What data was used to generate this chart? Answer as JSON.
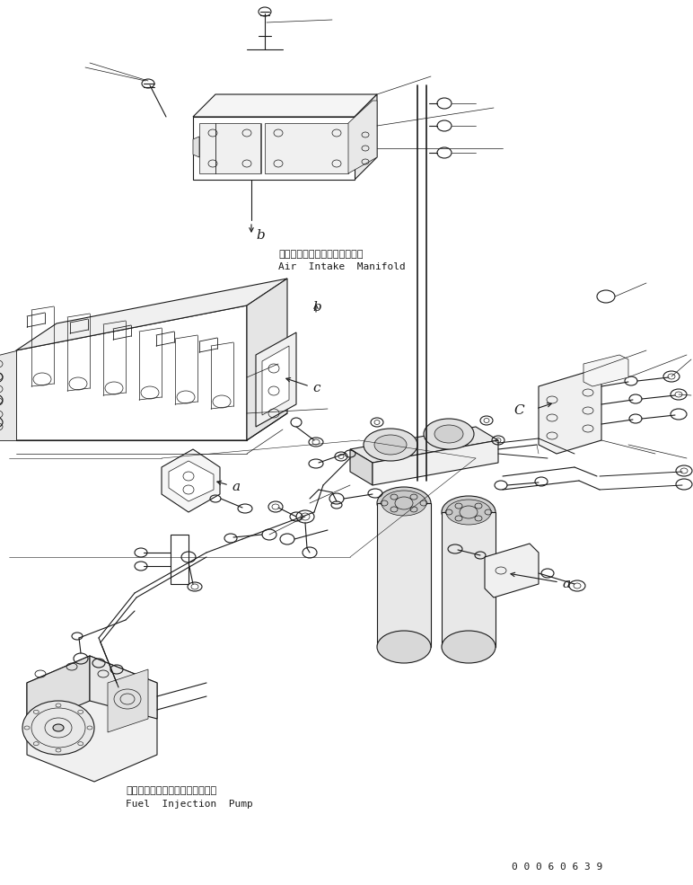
{
  "bg_color": "#ffffff",
  "line_color": "#1a1a1a",
  "fig_width": 7.72,
  "fig_height": 9.85,
  "dpi": 100,
  "label_air_intake_jp": "エアーインテークマニホールド",
  "label_air_intake_en": "Air  Intake  Manifold",
  "label_fuel_pump_jp": "フェエルインジェクションポンプ",
  "label_fuel_pump_en": "Fuel  Injection  Pump",
  "part_number": "0 0 0 6 0 6 3 9",
  "lw": 0.8
}
